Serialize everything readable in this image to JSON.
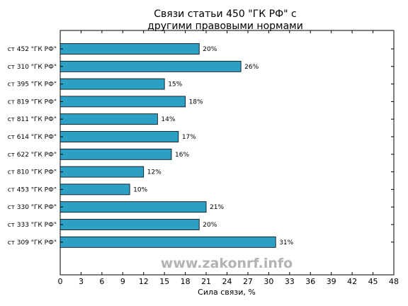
{
  "chart_data": {
    "type": "bar",
    "orientation": "horizontal",
    "title_lines": [
      "Связи статьи 450 \"ГК РФ\" с",
      "другими правовыми нормами"
    ],
    "xlabel": "Сила связи, %",
    "ylabel": "",
    "xlim": [
      0,
      48
    ],
    "xticks": [
      0,
      3,
      6,
      9,
      12,
      15,
      18,
      21,
      24,
      27,
      30,
      33,
      36,
      39,
      42,
      45,
      48
    ],
    "categories": [
      "ст 452 \"ГК РФ\"",
      "ст 310 \"ГК РФ\"",
      "ст 395 \"ГК РФ\"",
      "ст 819 \"ГК РФ\"",
      "ст 811 \"ГК РФ\"",
      "ст 614 \"ГК РФ\"",
      "ст 622 \"ГК РФ\"",
      "ст 810 \"ГК РФ\"",
      "ст 453 \"ГК РФ\"",
      "ст 330 \"ГК РФ\"",
      "ст 333 \"ГК РФ\"",
      "ст 309 \"ГК РФ\""
    ],
    "values": [
      20,
      26,
      15,
      18,
      14,
      17,
      16,
      12,
      10,
      21,
      20,
      31
    ],
    "value_labels": [
      "20%",
      "26%",
      "15%",
      "18%",
      "14%",
      "17%",
      "16%",
      "12%",
      "10%",
      "21%",
      "20%",
      "31%"
    ],
    "bar_color": "#2b9fc4",
    "grid": false,
    "legend": "none"
  },
  "watermark": "www.zakonrf.info"
}
